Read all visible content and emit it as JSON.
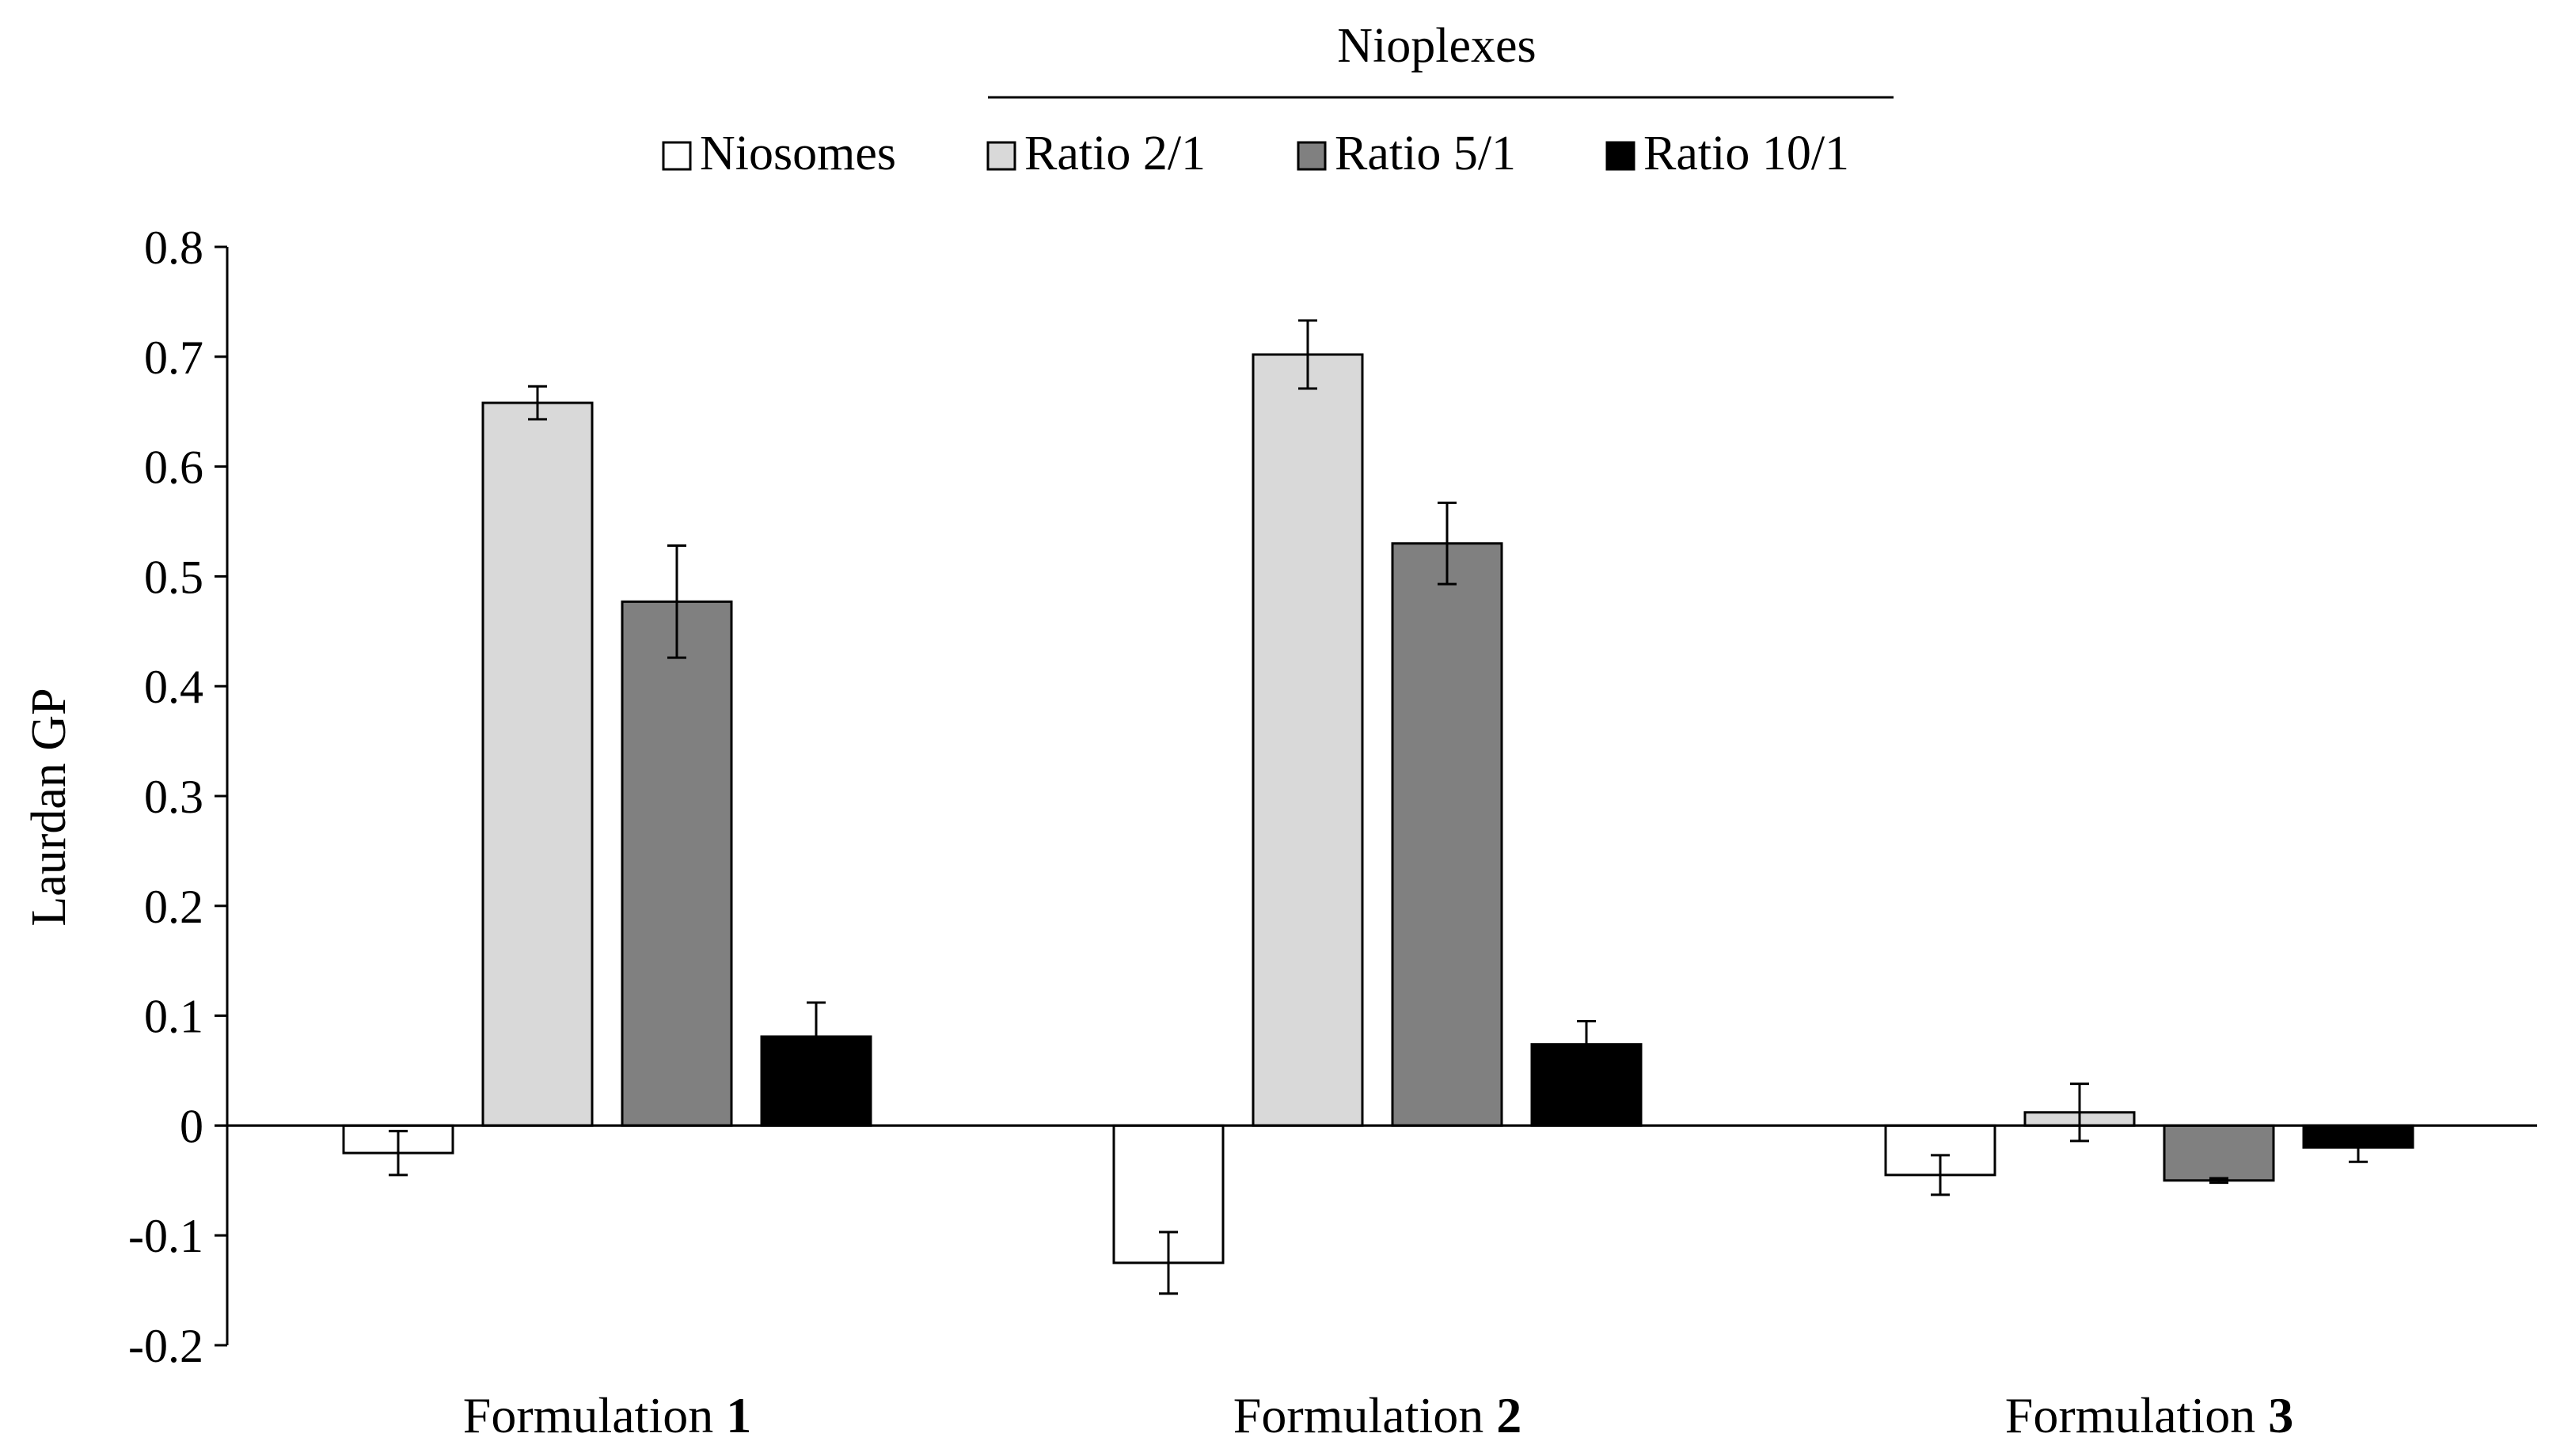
{
  "chart_data": {
    "type": "bar",
    "title": "",
    "legend_group_title": "Nioplexes",
    "xlabel": "",
    "ylabel": "Laurdan GP",
    "ylim": [
      -0.2,
      0.8
    ],
    "yticks": [
      "0.8",
      "0.7",
      "0.6",
      "0.5",
      "0.4",
      "0.3",
      "0.2",
      "0.1",
      "0",
      "-0.1",
      "-0.2"
    ],
    "ytick_values": [
      0.8,
      0.7,
      0.6,
      0.5,
      0.4,
      0.3,
      0.2,
      0.1,
      0,
      -0.1,
      -0.2
    ],
    "categories": [
      {
        "prefix": "Formulation ",
        "number": "1"
      },
      {
        "prefix": "Formulation ",
        "number": "2"
      },
      {
        "prefix": "Formulation ",
        "number": "3"
      }
    ],
    "series": [
      {
        "name": "Niosomes",
        "color": "#ffffff",
        "values": [
          -0.025,
          -0.125,
          -0.045
        ],
        "errors": [
          0.02,
          0.028,
          0.018
        ]
      },
      {
        "name": "Ratio 2/1",
        "color": "#d9d9d9",
        "values": [
          0.658,
          0.702,
          0.012
        ],
        "errors": [
          0.015,
          0.031,
          0.026
        ]
      },
      {
        "name": "Ratio 5/1",
        "color": "#808080",
        "values": [
          0.477,
          0.53,
          -0.05
        ],
        "errors": [
          0.051,
          0.037,
          0.002
        ]
      },
      {
        "name": "Ratio 10/1",
        "color": "#000000",
        "values": [
          0.081,
          0.074,
          -0.02
        ],
        "errors": [
          0.031,
          0.021,
          0.013
        ]
      }
    ],
    "grid": false,
    "legend_position": "top"
  }
}
